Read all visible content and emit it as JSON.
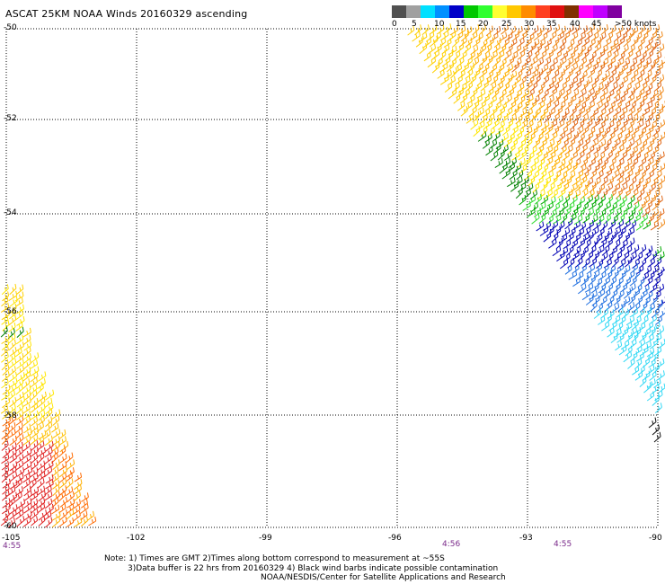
{
  "title": "ASCAT 25KM NOAA Winds 20160329 ascending",
  "legend": {
    "colors": [
      "#505050",
      "#a0a0a0",
      "#00e0ff",
      "#0090ff",
      "#0000c8",
      "#00c800",
      "#30ff30",
      "#ffff30",
      "#ffc800",
      "#ff8c00",
      "#ff4020",
      "#e01010",
      "#803000",
      "#ff00ff",
      "#c000ff",
      "#8000a0"
    ],
    "labels": [
      "0",
      "5",
      "10",
      "15",
      "20",
      "25",
      "30",
      "35",
      "40",
      "45",
      ">50 knots"
    ]
  },
  "axes": {
    "lat_labels": [
      "-50",
      "-52",
      "-54",
      "-56",
      "-58",
      "-60"
    ],
    "lon_labels": [
      "-105",
      "-102",
      "-99",
      "-96",
      "-93",
      "-90"
    ]
  },
  "pass_times": [
    "4:55",
    "4:56",
    "4:55"
  ],
  "notes": [
    "Note: 1) Times are GMT 2)Times along bottom correspond to measurement at ~55S",
    "3)Data buffer is 22 hrs from 20160329 4) Black wind barbs indicate possible contamination",
    "NOAA/NESDIS/Center for Satellite Applications and Research"
  ]
}
